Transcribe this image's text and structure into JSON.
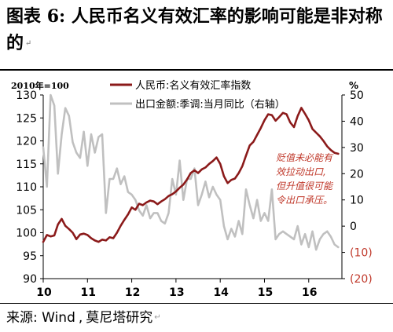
{
  "figure": {
    "title_prefix": "图表",
    "title_number": "6:",
    "title_text": "人民币名义有效汇率的影响可能是非对称的",
    "source_label": "来源:",
    "source_value": "Wind",
    "source_separator": ",",
    "source_author": "莫尼塔研究"
  },
  "chart_data": {
    "type": "line",
    "left_axis_unit": "2010年=100",
    "right_axis_unit": "%",
    "left_ylim": [
      90,
      130
    ],
    "right_ylim": [
      -20,
      50
    ],
    "left_ticks": [
      "130",
      "125",
      "120",
      "115",
      "110",
      "105",
      "100",
      "95",
      "90"
    ],
    "right_ticks": [
      "50",
      "40",
      "30",
      "20",
      "10",
      "0",
      "(10)",
      "(20)"
    ],
    "x_ticks": [
      "10",
      "11",
      "12",
      "13",
      "14",
      "15",
      "16"
    ],
    "x_range": [
      2010.0,
      2016.75
    ],
    "legend": {
      "placement": "top",
      "entries": [
        "人民币:名义有效汇率指数",
        "出口金额:季调:当月同比（右轴）"
      ]
    },
    "annotation": {
      "color": "#c0392b",
      "lines": [
        "贬值未必能有",
        "效拉动出口,",
        "但升值很可能",
        "令出口承压。"
      ]
    },
    "colors": {
      "neer": "#8b1a1a",
      "exports": "#c0c0c0"
    },
    "series": [
      {
        "name": "人民币:名义有效汇率指数",
        "axis": "left",
        "x": [
          2010.0,
          2010.083,
          2010.167,
          2010.25,
          2010.333,
          2010.417,
          2010.5,
          2010.583,
          2010.667,
          2010.75,
          2010.833,
          2010.917,
          2011.0,
          2011.083,
          2011.167,
          2011.25,
          2011.333,
          2011.417,
          2011.5,
          2011.583,
          2011.667,
          2011.75,
          2011.833,
          2011.917,
          2012.0,
          2012.083,
          2012.167,
          2012.25,
          2012.333,
          2012.417,
          2012.5,
          2012.583,
          2012.667,
          2012.75,
          2012.833,
          2012.917,
          2013.0,
          2013.083,
          2013.167,
          2013.25,
          2013.333,
          2013.417,
          2013.5,
          2013.583,
          2013.667,
          2013.75,
          2013.833,
          2013.917,
          2014.0,
          2014.083,
          2014.167,
          2014.25,
          2014.333,
          2014.417,
          2014.5,
          2014.583,
          2014.667,
          2014.75,
          2014.833,
          2014.917,
          2015.0,
          2015.083,
          2015.167,
          2015.25,
          2015.333,
          2015.417,
          2015.5,
          2015.583,
          2015.667,
          2015.75,
          2015.833,
          2015.917,
          2016.0,
          2016.083,
          2016.167,
          2016.25,
          2016.333,
          2016.417,
          2016.5,
          2016.583,
          2016.667
        ],
        "values": [
          98.0,
          99.5,
          99.2,
          99.4,
          101.8,
          103.0,
          101.5,
          100.8,
          100.0,
          98.6,
          99.6,
          99.8,
          99.5,
          98.8,
          98.3,
          98.0,
          98.5,
          98.3,
          99.0,
          98.8,
          100.0,
          101.5,
          102.8,
          104.0,
          105.5,
          105.0,
          106.3,
          106.0,
          106.6,
          107.0,
          106.8,
          106.2,
          106.8,
          107.3,
          108.0,
          108.4,
          109.0,
          109.8,
          110.5,
          111.6,
          113.0,
          113.6,
          113.0,
          113.8,
          114.2,
          115.0,
          115.6,
          116.4,
          115.0,
          112.3,
          110.8,
          111.5,
          111.8,
          113.0,
          114.5,
          116.8,
          119.0,
          119.8,
          121.3,
          122.8,
          124.5,
          125.8,
          125.6,
          124.4,
          125.2,
          126.1,
          125.8,
          124.0,
          123.0,
          125.4,
          127.2,
          125.9,
          124.5,
          122.6,
          121.8,
          121.0,
          120.0,
          118.8,
          118.0,
          117.4,
          117.2
        ]
      },
      {
        "name": "出口金额:季调:当月同比（右轴）",
        "axis": "right",
        "x": [
          2010.0,
          2010.083,
          2010.167,
          2010.25,
          2010.333,
          2010.417,
          2010.5,
          2010.583,
          2010.667,
          2010.75,
          2010.833,
          2010.917,
          2011.0,
          2011.083,
          2011.167,
          2011.25,
          2011.333,
          2011.417,
          2011.5,
          2011.583,
          2011.667,
          2011.75,
          2011.833,
          2011.917,
          2012.0,
          2012.083,
          2012.167,
          2012.25,
          2012.333,
          2012.417,
          2012.5,
          2012.583,
          2012.667,
          2012.75,
          2012.833,
          2012.917,
          2013.0,
          2013.083,
          2013.167,
          2013.25,
          2013.333,
          2013.417,
          2013.5,
          2013.583,
          2013.667,
          2013.75,
          2013.833,
          2013.917,
          2014.0,
          2014.083,
          2014.167,
          2014.25,
          2014.333,
          2014.417,
          2014.5,
          2014.583,
          2014.667,
          2014.75,
          2014.833,
          2014.917,
          2015.0,
          2015.083,
          2015.167,
          2015.25,
          2015.333,
          2015.417,
          2015.5,
          2015.583,
          2015.667,
          2015.75,
          2015.833,
          2015.917,
          2016.0,
          2016.083,
          2016.167,
          2016.25,
          2016.333,
          2016.417,
          2016.5,
          2016.583,
          2016.667
        ],
        "values": [
          30,
          15,
          50,
          46,
          20,
          35,
          45,
          42,
          32,
          28,
          26,
          36,
          23,
          35,
          28,
          34,
          35,
          5,
          18,
          18,
          22,
          16,
          19,
          13,
          12,
          10,
          6,
          4,
          8,
          3,
          5,
          5,
          2,
          1,
          5,
          18,
          12,
          25,
          10,
          18,
          18,
          22,
          8,
          12,
          17,
          11,
          15,
          12,
          10,
          0,
          -5,
          -1,
          -4,
          2,
          -3,
          14,
          8,
          3,
          10,
          2,
          5,
          2,
          14,
          -5,
          -3,
          -2,
          -3,
          -4,
          -5,
          0,
          -7,
          -3,
          -8,
          -2,
          -9,
          -5,
          -3,
          -2,
          -4,
          -7,
          -8
        ]
      }
    ]
  }
}
